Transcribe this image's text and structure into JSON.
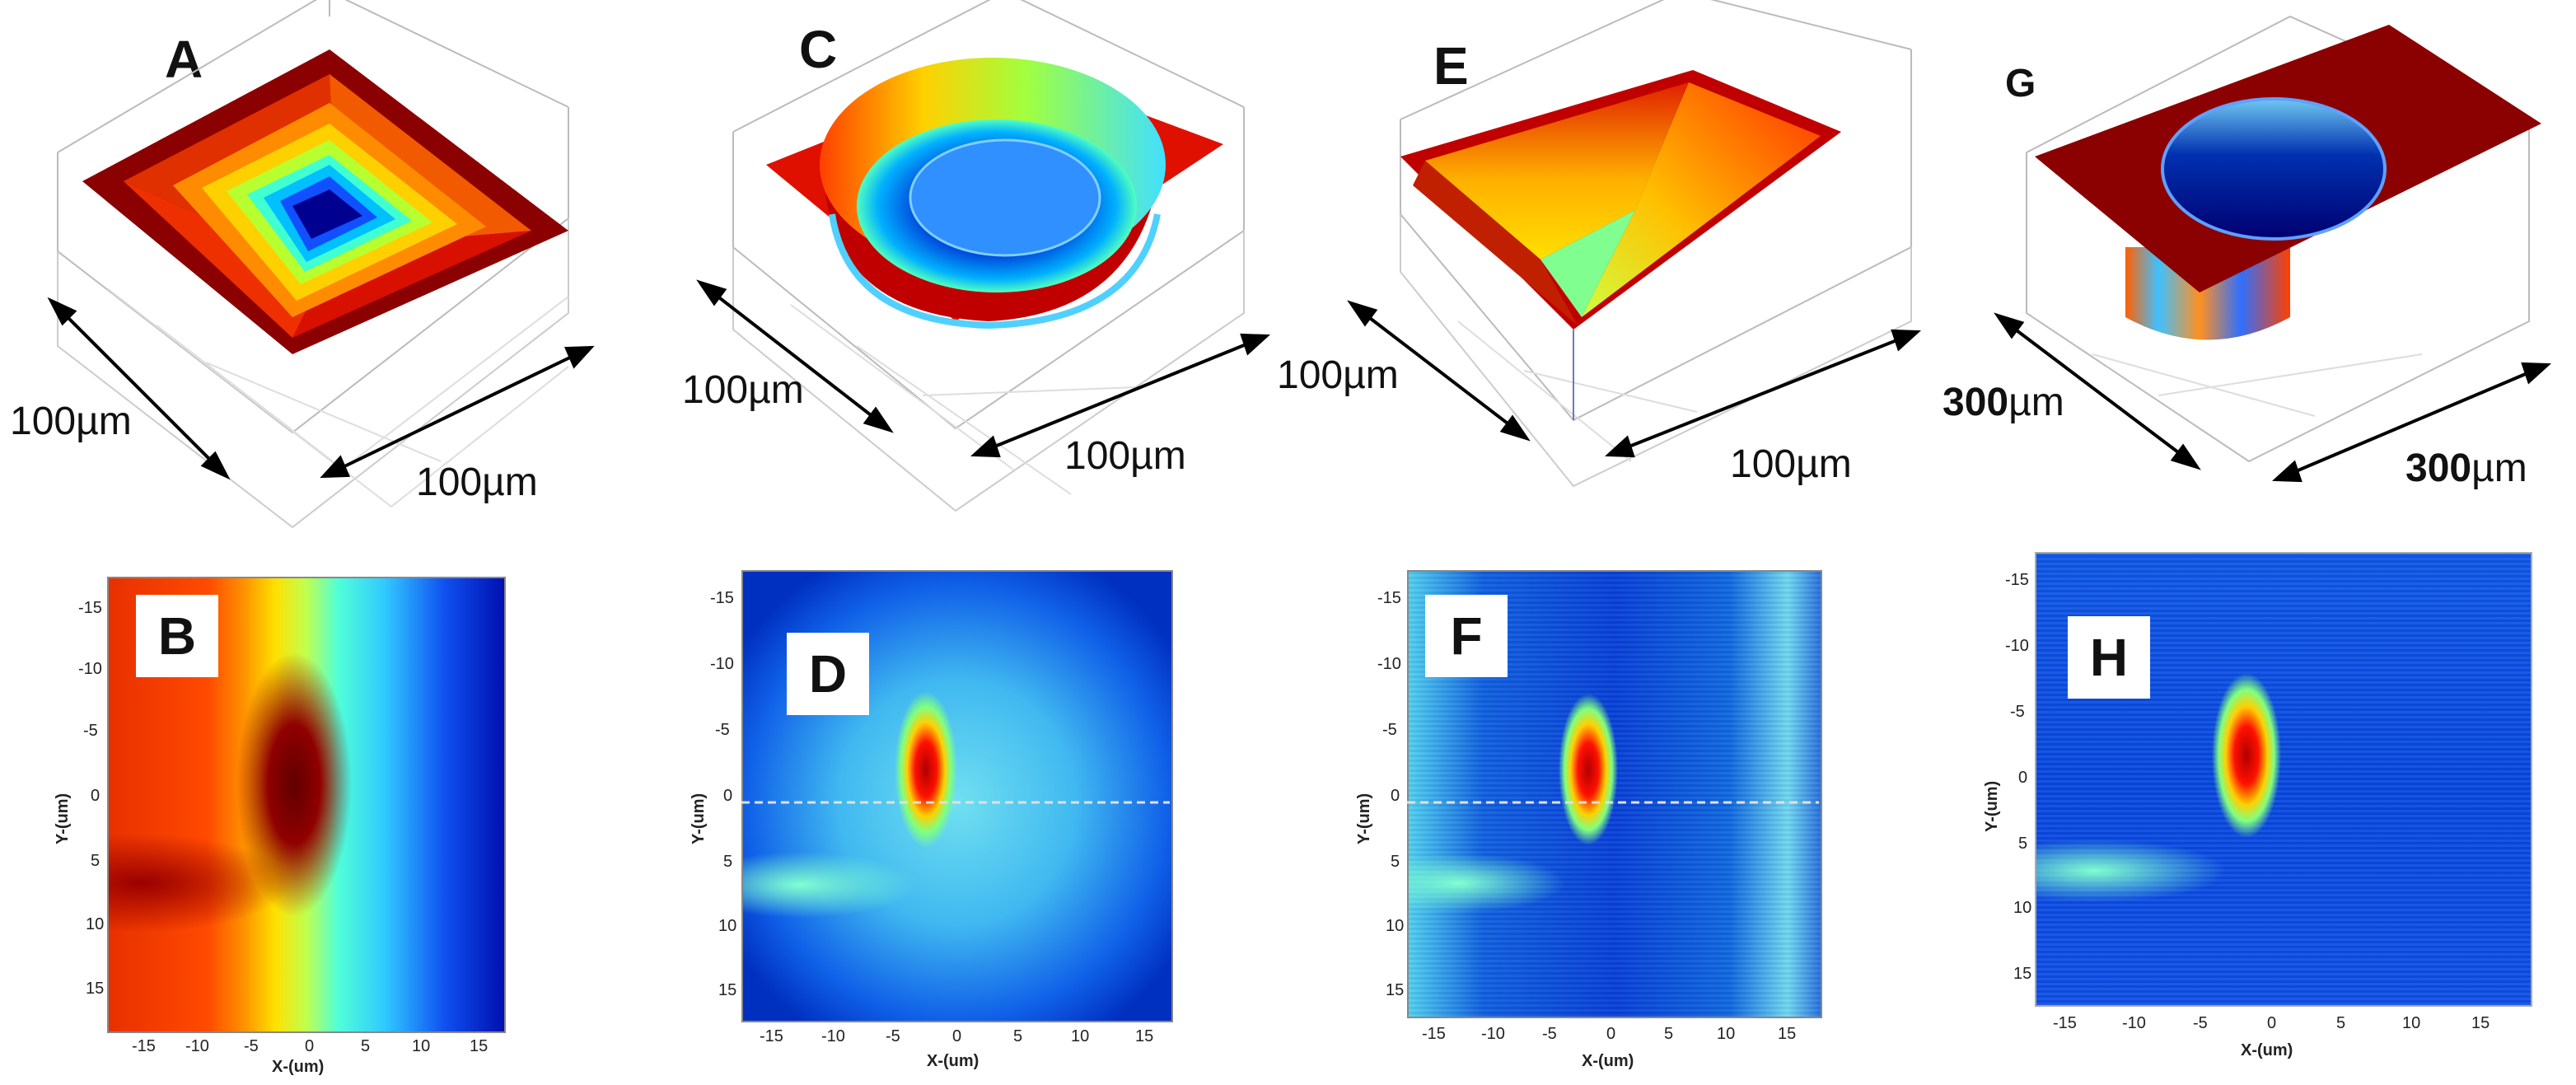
{
  "top_panels": [
    {
      "label": "A",
      "dim_left": "100µm",
      "dim_right": "100µm",
      "shape": "square pyramid"
    },
    {
      "label": "C",
      "dim_left": "100µm",
      "dim_right": "100µm",
      "shape": "cylindrical bowl"
    },
    {
      "label": "E",
      "dim_left": "100µm",
      "dim_right": "100µm",
      "shape": "square pyramid"
    },
    {
      "label": "G",
      "dim_left_num": "300",
      "dim_left_unit": "µm",
      "dim_right_num": "300",
      "dim_right_unit": "µm",
      "shape": "cylindrical hole"
    }
  ],
  "bottom_panels": [
    {
      "label": "B"
    },
    {
      "label": "D"
    },
    {
      "label": "F"
    },
    {
      "label": "H"
    }
  ],
  "heatmap_axes": {
    "x_label": "X-(um)",
    "y_label": "Y-(um)",
    "x_ticks": [
      "-15",
      "-10",
      "-5",
      "0",
      "5",
      "10",
      "15"
    ],
    "y_ticks": [
      "-15",
      "-10",
      "-5",
      "0",
      "5",
      "10",
      "15"
    ]
  },
  "colors": {
    "dark_red": "#7a0000",
    "red": "#d40000",
    "yellow": "#f5e600",
    "cyan": "#30d8f0",
    "blue": "#1030d8",
    "dark_blue": "#000090"
  }
}
